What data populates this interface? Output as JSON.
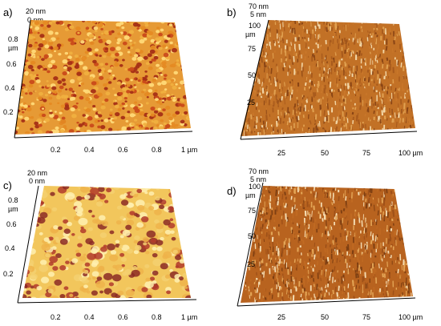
{
  "figure": {
    "panels": [
      {
        "id": "a",
        "label": "a)",
        "z_top": "20 nm",
        "z_bottom": "0 nm",
        "y_unit": "µm",
        "y_ticks": [
          "0.8",
          "0.6",
          "0.4",
          "0.2"
        ],
        "x_ticks": [
          "0.2",
          "0.4",
          "0.6",
          "0.8",
          "1 µm"
        ],
        "surface": "fine dense grains",
        "colors": [
          "#f0b040",
          "#e58a23",
          "#c94a1a",
          "#a52f16",
          "#ffd978"
        ]
      },
      {
        "id": "b",
        "label": "b)",
        "z_top": "70 nm",
        "z_bottom": "5 nm",
        "y_unit": "µm",
        "y_ticks": [
          "100",
          "75",
          "50",
          "25"
        ],
        "x_ticks": [
          "25",
          "50",
          "75",
          "100 µm"
        ],
        "surface": "fibrous spiky texture",
        "colors": [
          "#c9772a",
          "#a85a1c",
          "#e0a050",
          "#8a4515",
          "#f2d6a6"
        ]
      },
      {
        "id": "c",
        "label": "c)",
        "z_top": "20 nm",
        "z_bottom": "0 nm",
        "y_unit": "µm",
        "y_ticks": [
          "0.8",
          "0.6",
          "0.4",
          "0.2"
        ],
        "x_ticks": [
          "0.2",
          "0.4",
          "0.6",
          "0.8",
          "1 µm"
        ],
        "surface": "smooth yellow with red clusters",
        "colors": [
          "#f5d070",
          "#eeb34a",
          "#b13a2a",
          "#8c2a25",
          "#fff0b0"
        ]
      },
      {
        "id": "d",
        "label": "d)",
        "z_top": "70 nm",
        "z_bottom": "5 nm",
        "y_unit": "µm",
        "y_ticks": [
          "100",
          "75",
          "50",
          "25"
        ],
        "x_ticks": [
          "25",
          "50",
          "75",
          "100 µm"
        ],
        "surface": "fibrous spiky texture",
        "colors": [
          "#c06a22",
          "#9e5018",
          "#e3a556",
          "#7e3f12",
          "#f3dab0"
        ]
      }
    ]
  }
}
